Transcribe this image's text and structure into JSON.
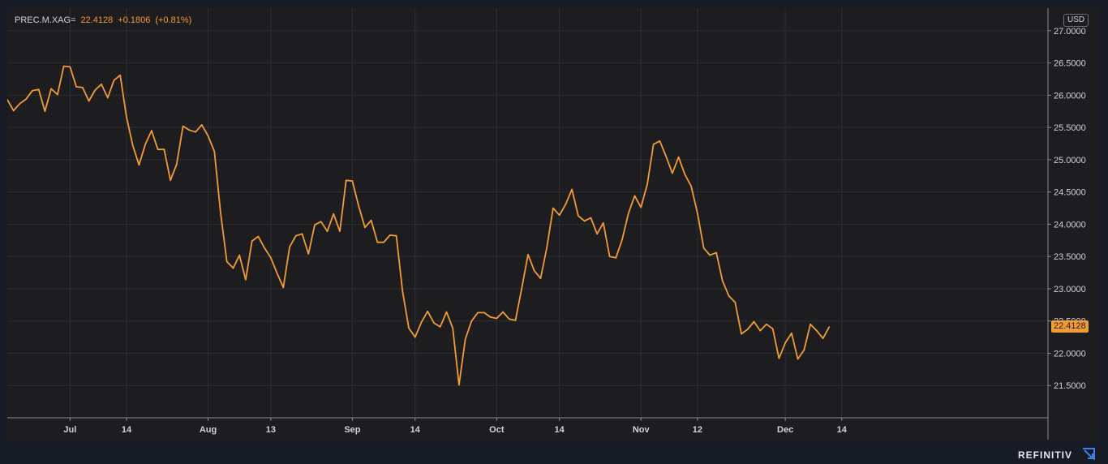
{
  "legend": {
    "symbol": "PREC.M.XAG=",
    "last": "22.4128",
    "change": "+0.1806",
    "change_pct": "(+0.81%)"
  },
  "currency": "USD",
  "last_price_label": "22.4128",
  "brand": "REFINITIV",
  "colors": {
    "line": "#f29c38",
    "background": "#1d1d1f",
    "grid": "#2c2f36",
    "axis_text": "#cfd3da"
  },
  "chart_data": {
    "type": "line",
    "title": "",
    "xlabel": "",
    "ylabel": "",
    "ylim": [
      21.0,
      27.35
    ],
    "grid": true,
    "y_ticks": [
      21.5,
      22.0,
      22.5,
      23.0,
      23.5,
      24.0,
      24.5,
      25.0,
      25.5,
      26.0,
      26.5,
      27.0
    ],
    "y_tick_labels": [
      "21.5000",
      "22.0000",
      "22.5000",
      "23.0000",
      "23.5000",
      "24.0000",
      "24.5000",
      "25.0000",
      "25.5000",
      "26.0000",
      "26.5000",
      "27.0000"
    ],
    "x_ticks": [
      {
        "label": "Jul",
        "index": 10
      },
      {
        "label": "14",
        "index": 19
      },
      {
        "label": "Aug",
        "index": 32
      },
      {
        "label": "13",
        "index": 42
      },
      {
        "label": "Sep",
        "index": 55
      },
      {
        "label": "14",
        "index": 65
      },
      {
        "label": "Oct",
        "index": 78
      },
      {
        "label": "14",
        "index": 88
      },
      {
        "label": "Nov",
        "index": 101
      },
      {
        "label": "12",
        "index": 110
      },
      {
        "label": "Dec",
        "index": 124
      },
      {
        "label": "14",
        "index": 133
      }
    ],
    "series": [
      {
        "values": [
          25.93,
          25.76,
          25.87,
          25.94,
          26.07,
          26.09,
          25.75,
          26.1,
          26.01,
          26.45,
          26.44,
          26.13,
          26.12,
          25.91,
          26.08,
          26.17,
          25.96,
          26.23,
          26.31,
          25.66,
          25.22,
          24.92,
          25.24,
          25.45,
          25.16,
          25.16,
          24.68,
          24.93,
          25.52,
          25.46,
          25.43,
          25.54,
          25.37,
          25.13,
          24.17,
          23.42,
          23.32,
          23.52,
          23.14,
          23.74,
          23.81,
          23.63,
          23.48,
          23.24,
          23.02,
          23.65,
          23.82,
          23.85,
          23.54,
          23.99,
          24.04,
          23.89,
          24.16,
          23.89,
          24.68,
          24.67,
          24.28,
          23.95,
          24.06,
          23.72,
          23.72,
          23.83,
          23.82,
          22.96,
          22.39,
          22.25,
          22.48,
          22.65,
          22.47,
          22.41,
          22.64,
          22.39,
          21.51,
          22.22,
          22.5,
          22.63,
          22.63,
          22.56,
          22.54,
          22.64,
          22.53,
          22.51,
          23.01,
          23.53,
          23.28,
          23.16,
          23.64,
          24.25,
          24.14,
          24.31,
          24.54,
          24.13,
          24.05,
          24.1,
          23.85,
          24.02,
          23.5,
          23.48,
          23.76,
          24.17,
          24.44,
          24.26,
          24.62,
          25.24,
          25.29,
          25.05,
          24.79,
          25.04,
          24.77,
          24.59,
          24.17,
          23.63,
          23.52,
          23.56,
          23.12,
          22.89,
          22.79,
          22.3,
          22.37,
          22.49,
          22.35,
          22.45,
          22.38,
          21.92,
          22.16,
          22.31,
          21.91,
          22.05,
          22.45,
          22.35,
          22.23,
          22.41
        ]
      }
    ]
  }
}
